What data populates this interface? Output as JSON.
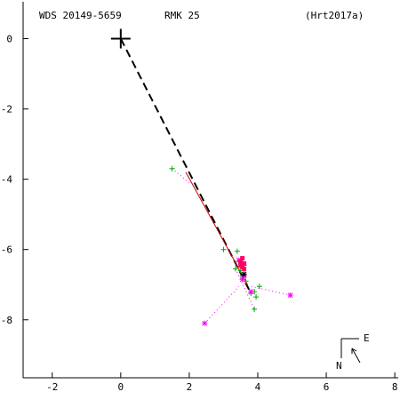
{
  "header": {
    "wds": "WDS 20149-5659",
    "discoverer": "RMK  25",
    "reference": "(Hrt2017a)"
  },
  "compass": {
    "east_label": "E",
    "north_label": "N",
    "arrow_icon": "direction-arrow-icon"
  },
  "colors": {
    "axes": "#000000",
    "predicted_orbit_dashed": "#000000",
    "fit_line": "#cc0000",
    "green_obs": "#00aa00",
    "magenta_obs": "#ff00ff",
    "pink_obs": "#ff0066",
    "dotted_residual": "#ff00ff"
  },
  "chart_data": {
    "type": "scatter",
    "title": "",
    "xlabel": "",
    "ylabel": "",
    "xlim": [
      -2.85,
      8.1
    ],
    "ylim": [
      -9.65,
      1.05
    ],
    "x_ticks": [
      -2,
      0,
      2,
      4,
      6,
      8
    ],
    "y_ticks": [
      0,
      -2,
      -4,
      -6,
      -8
    ],
    "grid": false,
    "primary_star": {
      "x": 0,
      "y": 0
    },
    "predicted_orbit_dashed": [
      [
        0,
        0
      ],
      [
        3.75,
        -7.15
      ]
    ],
    "fit_line": [
      [
        1.9,
        -3.8
      ],
      [
        3.7,
        -7.0
      ]
    ],
    "series": [
      {
        "marker": "plus",
        "color": "green",
        "points": [
          [
            1.5,
            -3.7
          ],
          [
            3.0,
            -6.0
          ],
          [
            3.4,
            -6.05
          ],
          [
            3.35,
            -6.55
          ],
          [
            3.5,
            -6.6
          ],
          [
            3.55,
            -6.75
          ],
          [
            3.65,
            -6.9
          ],
          [
            3.8,
            -7.25
          ],
          [
            3.9,
            -7.2
          ],
          [
            3.95,
            -7.35
          ],
          [
            4.05,
            -7.05
          ],
          [
            3.9,
            -7.7
          ],
          [
            3.6,
            -6.45
          ],
          [
            3.45,
            -6.35
          ]
        ]
      },
      {
        "marker": "asterisk",
        "color": "magenta",
        "points": [
          [
            2.45,
            -8.1
          ],
          [
            4.95,
            -7.3
          ],
          [
            3.45,
            -6.3
          ],
          [
            3.6,
            -6.75
          ],
          [
            3.55,
            -6.85
          ],
          [
            3.8,
            -7.2
          ]
        ]
      },
      {
        "marker": "square",
        "color": "pink",
        "points": [
          [
            3.55,
            -6.25
          ],
          [
            3.5,
            -6.35
          ],
          [
            3.6,
            -6.4
          ],
          [
            3.55,
            -6.5
          ],
          [
            3.5,
            -6.45
          ],
          [
            3.6,
            -6.55
          ]
        ]
      },
      {
        "marker": "asterisk",
        "color": "black",
        "points": [
          [
            3.6,
            -6.7
          ]
        ]
      }
    ],
    "residual_links": [
      [
        [
          2.45,
          -8.1
        ],
        [
          3.45,
          -7.05
        ]
      ],
      [
        [
          4.95,
          -7.3
        ],
        [
          3.8,
          -7.05
        ]
      ],
      [
        [
          1.5,
          -3.7
        ],
        [
          2.0,
          -4.1
        ]
      ],
      [
        [
          3.35,
          -6.55
        ],
        [
          3.9,
          -7.7
        ]
      ]
    ]
  }
}
